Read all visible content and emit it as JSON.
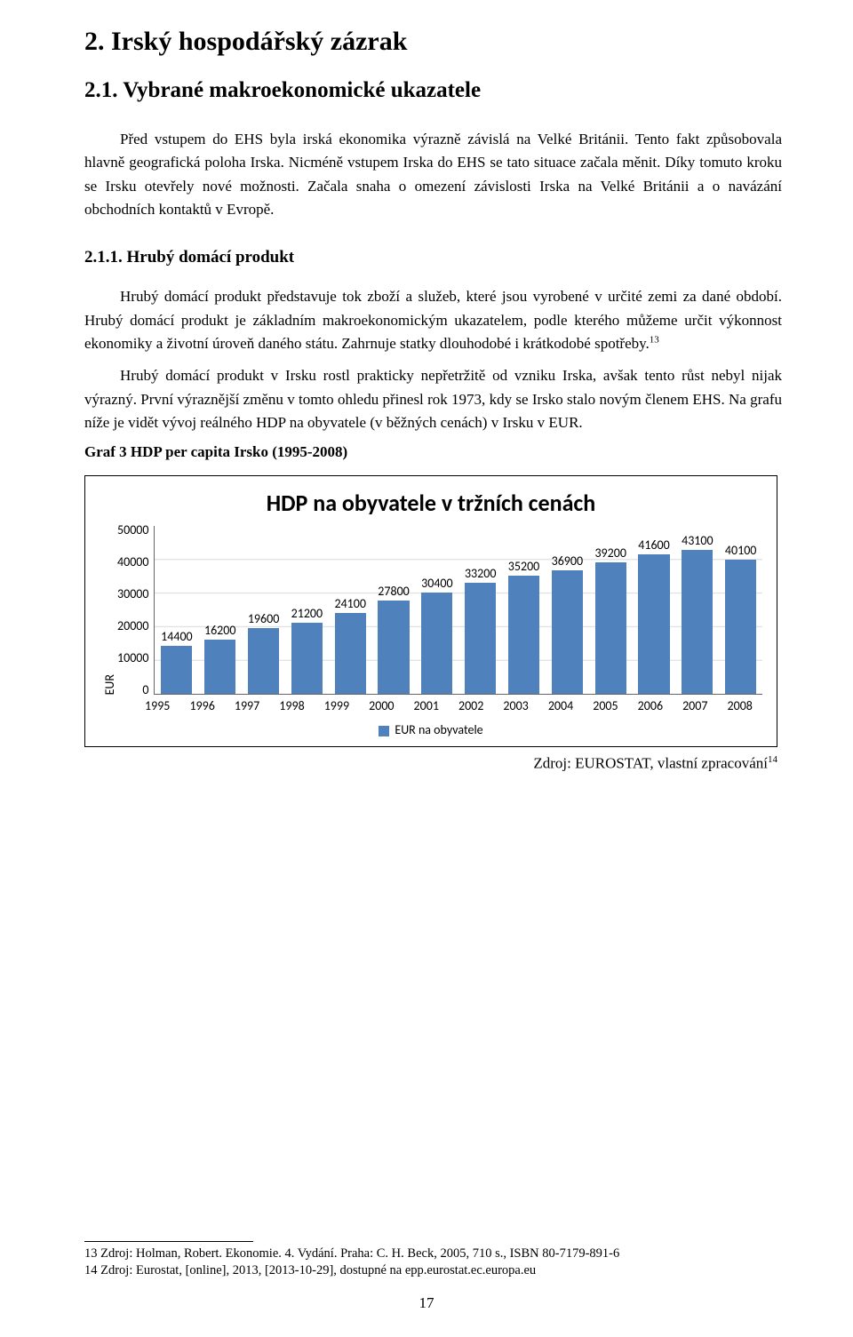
{
  "doc": {
    "h1": "2.   Irský hospodářský zázrak",
    "h2": "2.1.   Vybrané makroekonomické ukazatele",
    "p1": "Před vstupem do EHS byla irská ekonomika výrazně závislá na Velké Británii. Tento fakt způsobovala hlavně geografická poloha Irska. Nicméně vstupem Irska do EHS se tato situace začala měnit. Díky tomuto kroku se Irsku otevřely nové možnosti. Začala snaha o omezení závislosti Irska na Velké Británii a o navázání obchodních kontaktů v Evropě.",
    "h3": "2.1.1.  Hrubý domácí produkt",
    "p2_a": "Hrubý domácí produkt představuje tok zboží a služeb, které jsou vyrobené v určité zemi za dané období. Hrubý domácí produkt je základním makroekonomickým ukazatelem, podle kterého můžeme určit výkonnost ekonomiky a životní úroveň daného státu. Zahrnuje statky dlouhodobé i krátkodobé spotřeby.",
    "p2_sup": "13",
    "p3": "Hrubý domácí produkt v Irsku rostl prakticky nepřetržitě od vzniku Irska, avšak tento růst nebyl nijak výrazný. První výraznější změnu v tomto ohledu přinesl rok 1973, kdy se Irsko stalo novým členem EHS. Na grafu níže je vidět vývoj reálného HDP na obyvatele (v běžných cenách) v Irsku v EUR.",
    "graf_label": "Graf 3 HDP per capita Irsko (1995-2008)",
    "source_a": "Zdroj: EUROSTAT, vlastní zpracování",
    "source_sup": "14",
    "page_number": "17"
  },
  "chart": {
    "type": "bar",
    "title": "HDP na obyvatele v tržních cenách",
    "ylabel": "EUR",
    "ymax": 50000,
    "yticks": [
      "50000",
      "40000",
      "30000",
      "20000",
      "10000",
      "0"
    ],
    "bar_color": "#4f81bd",
    "grid_color": "#d9d9d9",
    "categories": [
      "1995",
      "1996",
      "1997",
      "1998",
      "1999",
      "2000",
      "2001",
      "2002",
      "2003",
      "2004",
      "2005",
      "2006",
      "2007",
      "2008"
    ],
    "values": [
      14400,
      16200,
      19600,
      21200,
      24100,
      27800,
      30400,
      33200,
      35200,
      36900,
      39200,
      41600,
      43100,
      40100
    ],
    "legend_label": "EUR na obyvatele"
  },
  "footnotes": {
    "f13": "13 Zdroj: Holman, Robert. Ekonomie. 4. Vydání. Praha: C. H. Beck, 2005, 710 s., ISBN 80-7179-891-6",
    "f14": "14 Zdroj: Eurostat, [online], 2013, [2013-10-29], dostupné na epp.eurostat.ec.europa.eu"
  }
}
